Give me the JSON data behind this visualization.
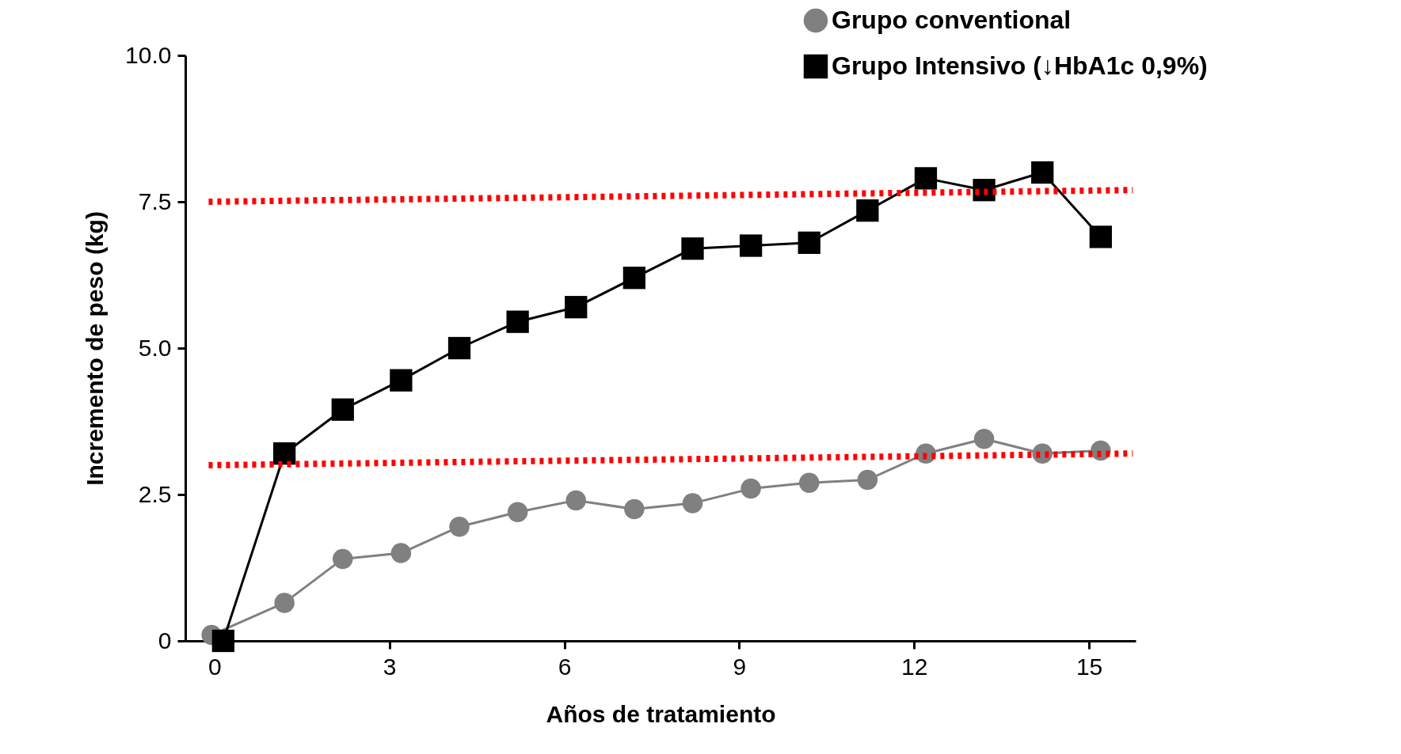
{
  "chart_data": {
    "type": "line",
    "xlabel": "Años de tratamiento",
    "ylabel": "Incremento de peso (kg)",
    "xlim": [
      -0.5,
      15.8
    ],
    "xticks": [
      0,
      3,
      6,
      9,
      12,
      15
    ],
    "ylim": [
      0,
      10
    ],
    "yticks": [
      0,
      {
        "value": 2.5,
        "label": "2.5"
      },
      {
        "value": 5,
        "label": "5.0"
      },
      7.5,
      {
        "value": 10,
        "label": "10.0"
      }
    ],
    "grid": false,
    "legend": "top right",
    "series": [
      {
        "name": "Grupo conventional",
        "color": "#808080",
        "marker": "circle",
        "line_style": "solid",
        "x": [
          -0.05,
          1.2,
          2.2,
          3.2,
          4.2,
          5.2,
          6.2,
          7.2,
          8.2,
          9.2,
          10.2,
          11.2,
          12.2,
          13.2,
          14.2,
          15.2
        ],
        "values": [
          0.1,
          0.65,
          1.4,
          1.5,
          1.95,
          2.2,
          2.4,
          2.25,
          2.35,
          2.6,
          2.7,
          2.75,
          3.2,
          3.45,
          3.2,
          3.25
        ]
      },
      {
        "name": "Grupo Intensivo (↓HbA1c 0,9%)",
        "color": "#000000",
        "marker": "square",
        "line_style": "solid",
        "x": [
          0.15,
          1.2,
          2.2,
          3.2,
          4.2,
          5.2,
          6.2,
          7.2,
          8.2,
          9.2,
          10.2,
          11.2,
          12.2,
          13.2,
          14.2,
          15.2
        ],
        "values": [
          0,
          3.2,
          3.95,
          4.45,
          5.0,
          5.45,
          5.7,
          6.2,
          6.7,
          6.75,
          6.8,
          7.35,
          7.9,
          7.7,
          8.0,
          6.9
        ]
      },
      {
        "type": "line",
        "color": "#ff0000",
        "marker": "none",
        "line_style": "dotted",
        "x": [
          -0.1,
          15.75
        ],
        "values": [
          7.5,
          7.7
        ]
      },
      {
        "type": "line",
        "color": "#ff0000",
        "marker": "none",
        "line_style": "dotted",
        "x": [
          -0.1,
          15.75
        ],
        "values": [
          3.0,
          3.2
        ]
      }
    ]
  }
}
